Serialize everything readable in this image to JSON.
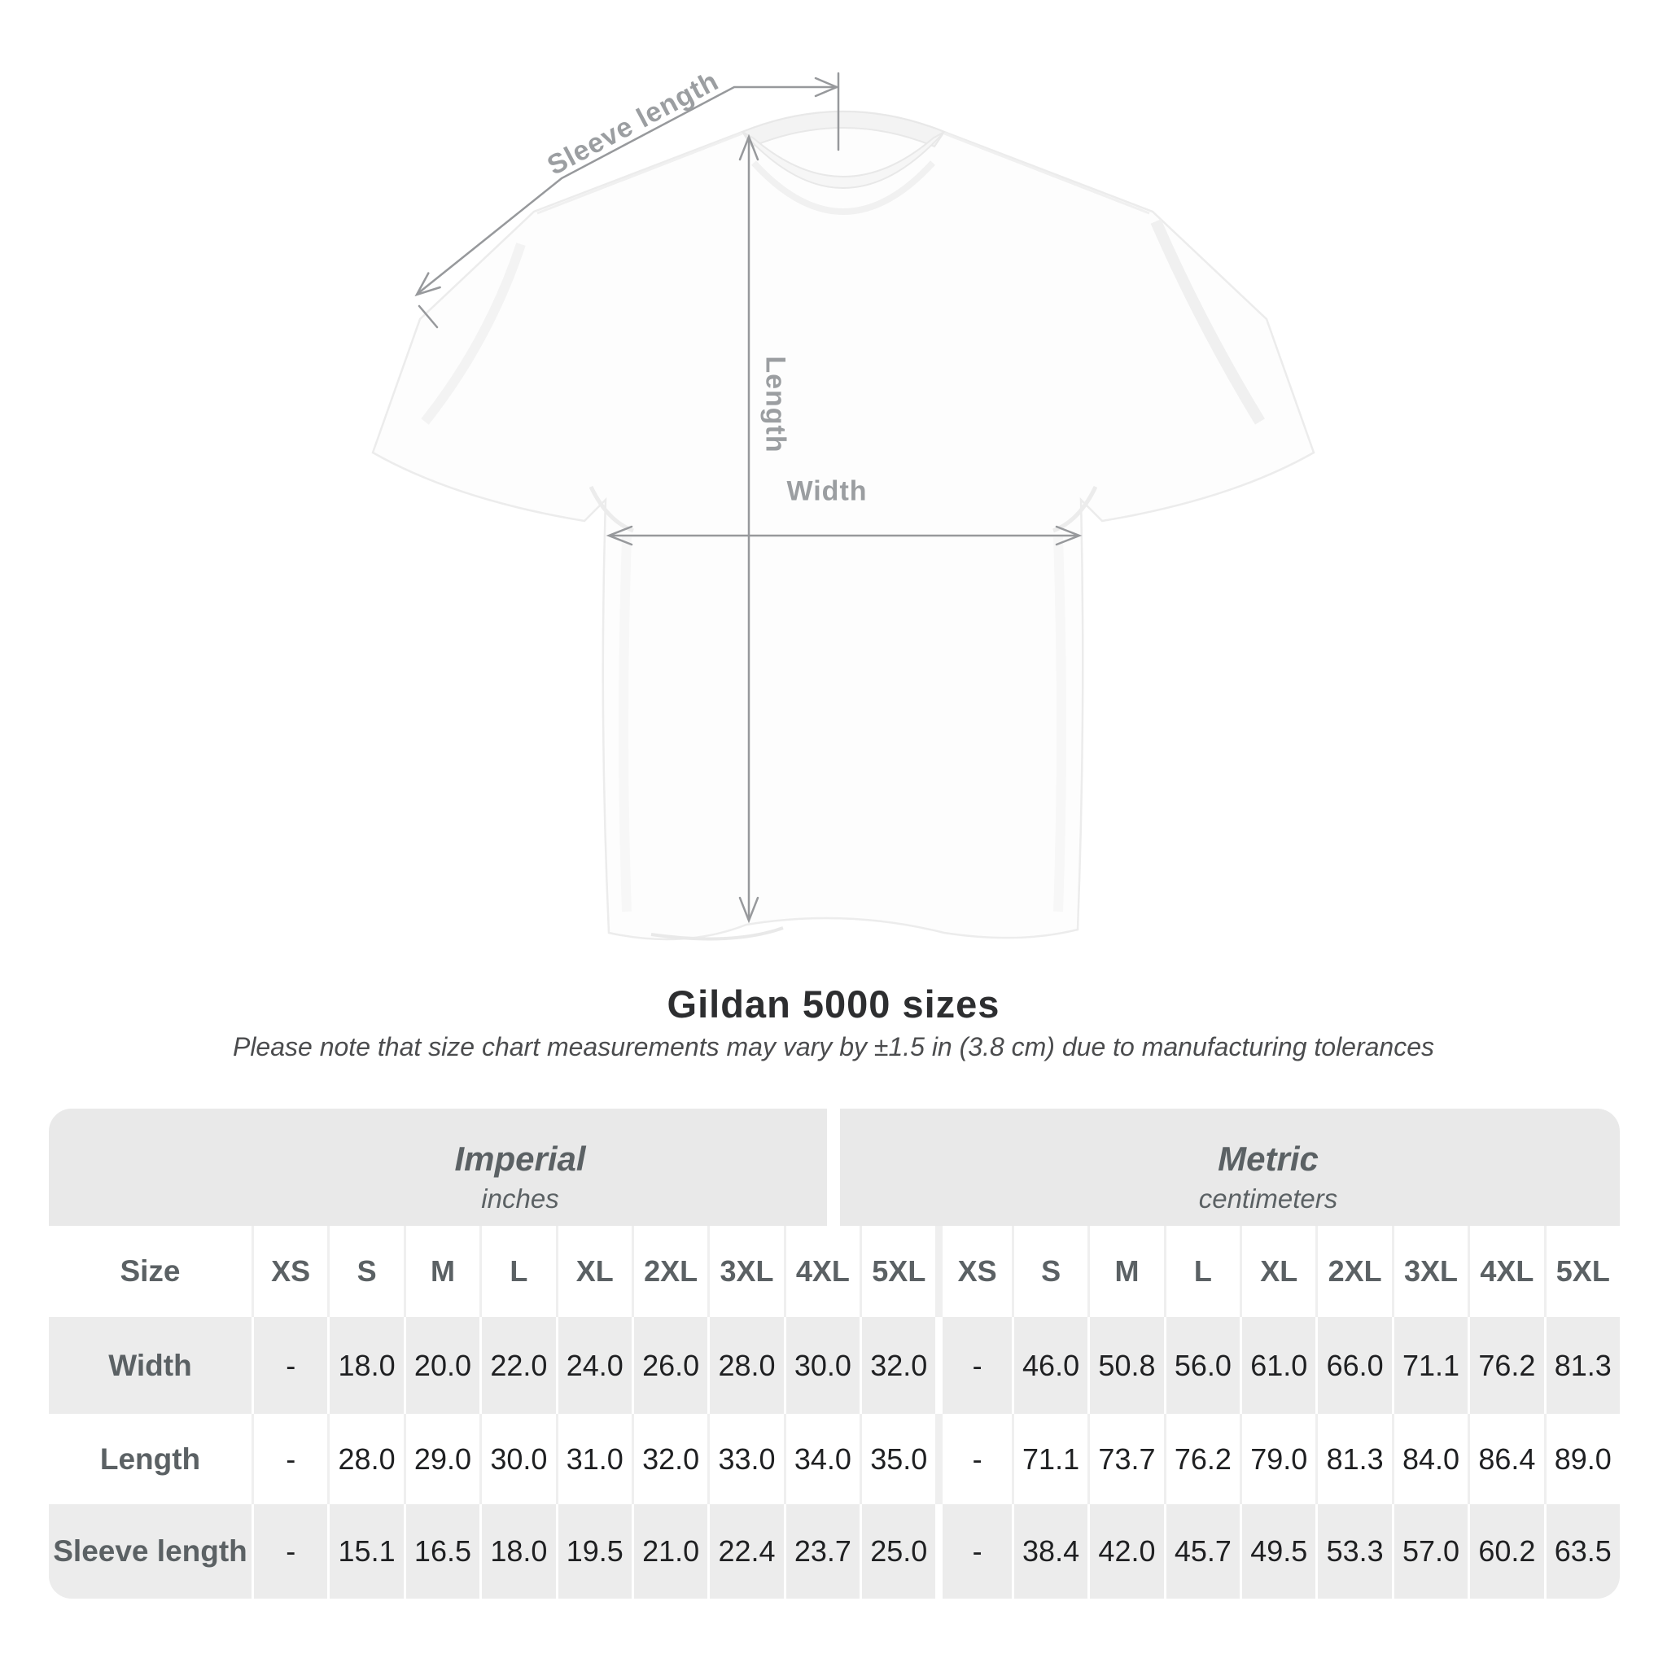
{
  "diagram": {
    "sleeve_label": "Sleeve length",
    "length_label": "Length",
    "width_label": "Width",
    "line_color": "#97999c",
    "label_color": "#9b9ea1"
  },
  "title": "Gildan 5000 sizes",
  "subtitle": "Please note that size chart measurements may vary by ±1.5 in (3.8 cm) due to manufacturing tolerances",
  "table": {
    "size_header": "Size",
    "groups": [
      {
        "name": "Imperial",
        "unit": "inches"
      },
      {
        "name": "Metric",
        "unit": "centimeters"
      }
    ],
    "sizes": [
      "XS",
      "S",
      "M",
      "L",
      "XL",
      "2XL",
      "3XL",
      "4XL",
      "5XL"
    ],
    "rows": [
      {
        "label": "Width",
        "imperial": [
          "-",
          "18.0",
          "20.0",
          "22.0",
          "24.0",
          "26.0",
          "28.0",
          "30.0",
          "32.0"
        ],
        "metric": [
          "-",
          "46.0",
          "50.8",
          "56.0",
          "61.0",
          "66.0",
          "71.1",
          "76.2",
          "81.3"
        ]
      },
      {
        "label": "Length",
        "imperial": [
          "-",
          "28.0",
          "29.0",
          "30.0",
          "31.0",
          "32.0",
          "33.0",
          "34.0",
          "35.0"
        ],
        "metric": [
          "-",
          "71.1",
          "73.7",
          "76.2",
          "79.0",
          "81.3",
          "84.0",
          "86.4",
          "89.0"
        ]
      },
      {
        "label": "Sleeve length",
        "imperial": [
          "-",
          "15.1",
          "16.5",
          "18.0",
          "19.5",
          "21.0",
          "22.4",
          "23.7",
          "25.0"
        ],
        "metric": [
          "-",
          "38.4",
          "42.0",
          "45.7",
          "49.5",
          "53.3",
          "57.0",
          "60.2",
          "63.5"
        ]
      }
    ],
    "colors": {
      "band_bg": "#e9e9e9",
      "alt_row_bg": "#ececec",
      "header_text": "#5b6164",
      "value_text": "#1f2022"
    }
  },
  "chart_data": {
    "type": "table",
    "title": "Gildan 5000 sizes",
    "note": "Please note that size chart measurements may vary by ±1.5 in (3.8 cm) due to manufacturing tolerances",
    "column_groups": [
      "Imperial (inches)",
      "Metric (centimeters)"
    ],
    "columns": [
      "Size",
      "XS",
      "S",
      "M",
      "L",
      "XL",
      "2XL",
      "3XL",
      "4XL",
      "5XL",
      "XS",
      "S",
      "M",
      "L",
      "XL",
      "2XL",
      "3XL",
      "4XL",
      "5XL"
    ],
    "rows": [
      [
        "Width",
        "-",
        18.0,
        20.0,
        22.0,
        24.0,
        26.0,
        28.0,
        30.0,
        32.0,
        "-",
        46.0,
        50.8,
        56.0,
        61.0,
        66.0,
        71.1,
        76.2,
        81.3
      ],
      [
        "Length",
        "-",
        28.0,
        29.0,
        30.0,
        31.0,
        32.0,
        33.0,
        34.0,
        35.0,
        "-",
        71.1,
        73.7,
        76.2,
        79.0,
        81.3,
        84.0,
        86.4,
        89.0
      ],
      [
        "Sleeve length",
        "-",
        15.1,
        16.5,
        18.0,
        19.5,
        21.0,
        22.4,
        23.7,
        25.0,
        "-",
        38.4,
        42.0,
        45.7,
        49.5,
        53.3,
        57.0,
        60.2,
        63.5
      ]
    ]
  }
}
